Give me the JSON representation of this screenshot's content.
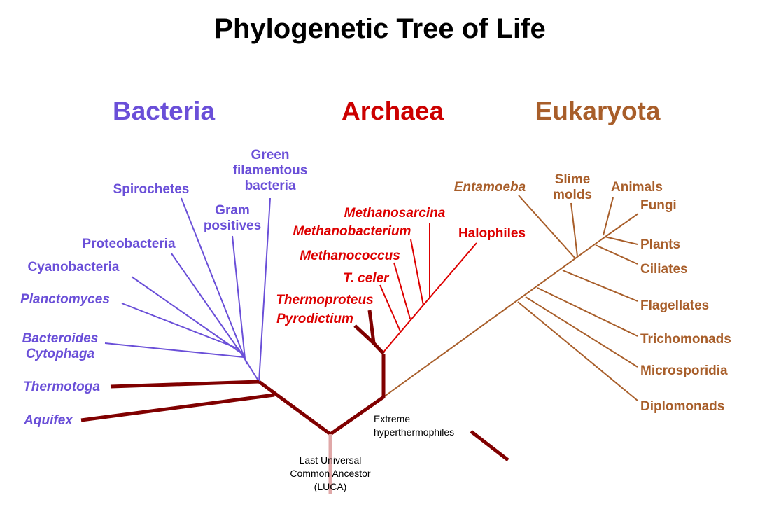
{
  "title": "Phylogenetic Tree of Life",
  "colors": {
    "bacteria": "#6a4fd8",
    "archaea": "#dd0000",
    "eukaryota": "#a85e2a",
    "trunk": "#800000",
    "luca_stem": "#e0a8a8"
  },
  "domains": {
    "bacteria": "Bacteria",
    "archaea": "Archaea",
    "eukaryota": "Eukaryota"
  },
  "bacteria": {
    "green_filamentous": [
      "Green",
      "filamentous",
      "bacteria"
    ],
    "spirochetes": "Spirochetes",
    "gram_positives": [
      "Gram",
      "positives"
    ],
    "proteobacteria": "Proteobacteria",
    "cyanobacteria": "Cyanobacteria",
    "planctomyces": "Planctomyces",
    "bacteroides_cytophaga": [
      "Bacteroides",
      "Cytophaga"
    ],
    "thermotoga": "Thermotoga",
    "aquifex": "Aquifex"
  },
  "archaea": {
    "methanosarcina": "Methanosarcina",
    "methanobacterium": "Methanobacterium",
    "halophiles": "Halophiles",
    "methanococcus": "Methanococcus",
    "t_celer": "T. celer",
    "thermoproteus": "Thermoproteus",
    "pyrodictium": "Pyrodictium"
  },
  "eukaryota": {
    "entamoeba": "Entamoeba",
    "slime_molds": [
      "Slime",
      "molds"
    ],
    "animals": "Animals",
    "fungi": "Fungi",
    "plants": "Plants",
    "ciliates": "Ciliates",
    "flagellates": "Flagellates",
    "trichomonads": "Trichomonads",
    "microsporidia": "Microsporidia",
    "diplomonads": "Diplomonads"
  },
  "legend": {
    "extreme_hyperthermophiles": [
      "Extreme",
      "hyperthermophiles"
    ]
  },
  "root": {
    "luca": [
      "Last Universal",
      "Common Ancestor",
      "(LUCA)"
    ]
  }
}
